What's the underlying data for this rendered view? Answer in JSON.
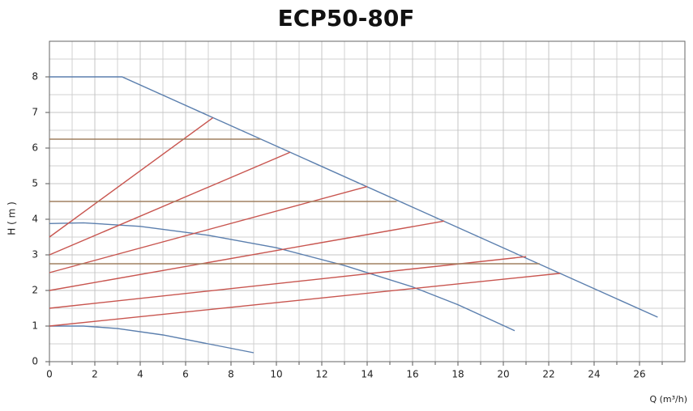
{
  "chart_data": {
    "type": "line",
    "title": "ECP50-80F",
    "x_label": "Q (m³/h)",
    "y_label": "H ( m )",
    "xlim": [
      0,
      28
    ],
    "ylim": [
      0,
      9
    ],
    "xticks": [
      0,
      2,
      4,
      6,
      8,
      10,
      12,
      14,
      16,
      18,
      20,
      22,
      24,
      26
    ],
    "yticks": [
      0,
      1,
      2,
      3,
      4,
      5,
      6,
      7,
      8
    ],
    "grid": true,
    "series": [
      {
        "color": "#5b7fae",
        "x": [
          0,
          3.2,
          26.8
        ],
        "values": [
          8,
          8,
          1.25
        ]
      },
      {
        "color": "#5b7fae",
        "x": [
          0,
          1.5,
          4,
          7,
          10,
          13,
          16,
          18,
          20.5
        ],
        "values": [
          3.88,
          3.9,
          3.8,
          3.55,
          3.2,
          2.7,
          2.1,
          1.6,
          0.87
        ]
      },
      {
        "color": "#5b7fae",
        "x": [
          0,
          1.5,
          3,
          5,
          7,
          9
        ],
        "values": [
          1,
          1,
          0.93,
          0.75,
          0.5,
          0.25
        ]
      },
      {
        "color": "#c8554f",
        "x": [
          0,
          7.2
        ],
        "values": [
          3.5,
          6.85
        ]
      },
      {
        "color": "#c8554f",
        "x": [
          0,
          10.6
        ],
        "values": [
          3,
          5.88
        ]
      },
      {
        "color": "#c8554f",
        "x": [
          0,
          14
        ],
        "values": [
          2.5,
          4.92
        ]
      },
      {
        "color": "#c8554f",
        "x": [
          0,
          17.4
        ],
        "values": [
          2,
          3.95
        ]
      },
      {
        "color": "#c8554f",
        "x": [
          0,
          21
        ],
        "values": [
          1.5,
          2.95
        ]
      },
      {
        "color": "#c8554f",
        "x": [
          0,
          22.5
        ],
        "values": [
          1,
          2.48
        ]
      },
      {
        "color": "#a08060",
        "x": [
          0,
          9.3
        ],
        "values": [
          6.25,
          6.25
        ]
      },
      {
        "color": "#a08060",
        "x": [
          0,
          15.3
        ],
        "values": [
          4.5,
          4.5
        ]
      },
      {
        "color": "#a08060",
        "x": [
          0,
          21.6
        ],
        "values": [
          2.75,
          2.75
        ]
      }
    ]
  }
}
